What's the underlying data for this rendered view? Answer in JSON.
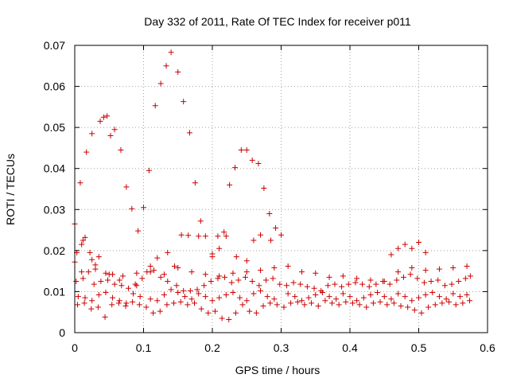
{
  "chart_data": {
    "type": "scatter",
    "title": "Day 332 of 2011, Rate Of TEC Index for receiver p011",
    "xlabel": "GPS time / hours",
    "ylabel": "ROTI / TECUs",
    "xlim": [
      0,
      0.6
    ],
    "ylim": [
      0,
      0.07
    ],
    "xticks": [
      "0",
      "0.1",
      "0.2",
      "0.3",
      "0.4",
      "0.5",
      "0.6"
    ],
    "yticks": [
      "0",
      "0.01",
      "0.02",
      "0.03",
      "0.04",
      "0.05",
      "0.06",
      "0.07"
    ],
    "grid": true,
    "marker": "plus",
    "colors": {
      "marker": "#cc0000"
    },
    "series": [
      {
        "x": [
          0.0,
          0.003,
          0.008,
          0.012,
          0.017,
          0.022,
          0.025,
          0.03,
          0.037,
          0.042,
          0.047,
          0.052,
          0.058,
          0.067,
          0.075,
          0.083,
          0.092,
          0.1,
          0.108,
          0.117,
          0.125,
          0.133,
          0.14,
          0.15,
          0.158,
          0.167,
          0.175,
          0.183,
          0.2,
          0.208,
          0.217,
          0.225,
          0.233,
          0.242,
          0.25,
          0.258,
          0.267,
          0.275,
          0.283,
          0.292,
          0.3,
          0.0,
          0.01,
          0.015,
          0.025,
          0.035,
          0.045,
          0.055,
          0.065,
          0.09,
          0.11,
          0.12,
          0.135,
          0.145,
          0.155,
          0.165,
          0.18,
          0.19,
          0.2,
          0.21,
          0.22,
          0.235,
          0.25,
          0.26,
          0.27,
          0.285,
          0.46,
          0.47,
          0.48,
          0.49,
          0.5,
          0.51,
          0.002,
          0.012,
          0.02,
          0.028,
          0.038,
          0.048,
          0.058,
          0.068,
          0.078,
          0.088,
          0.098,
          0.105,
          0.115,
          0.125,
          0.135,
          0.148,
          0.158,
          0.168,
          0.178,
          0.188,
          0.198,
          0.208,
          0.218,
          0.228,
          0.238,
          0.248,
          0.258,
          0.268,
          0.278,
          0.288,
          0.298,
          0.308,
          0.318,
          0.328,
          0.338,
          0.348,
          0.358,
          0.368,
          0.378,
          0.388,
          0.398,
          0.408,
          0.418,
          0.428,
          0.438,
          0.448,
          0.458,
          0.468,
          0.478,
          0.488,
          0.498,
          0.508,
          0.518,
          0.528,
          0.538,
          0.548,
          0.558,
          0.568,
          0.575,
          0.005,
          0.015,
          0.025,
          0.035,
          0.045,
          0.055,
          0.065,
          0.075,
          0.085,
          0.095,
          0.11,
          0.12,
          0.13,
          0.14,
          0.15,
          0.16,
          0.17,
          0.18,
          0.19,
          0.2,
          0.21,
          0.22,
          0.23,
          0.24,
          0.25,
          0.26,
          0.27,
          0.28,
          0.29,
          0.31,
          0.32,
          0.33,
          0.34,
          0.35,
          0.36,
          0.37,
          0.38,
          0.39,
          0.4,
          0.41,
          0.42,
          0.43,
          0.44,
          0.45,
          0.46,
          0.47,
          0.48,
          0.49,
          0.5,
          0.51,
          0.52,
          0.53,
          0.54,
          0.55,
          0.56,
          0.57,
          0.004,
          0.014,
          0.024,
          0.034,
          0.044,
          0.054,
          0.064,
          0.074,
          0.084,
          0.094,
          0.104,
          0.114,
          0.124,
          0.134,
          0.144,
          0.154,
          0.164,
          0.174,
          0.184,
          0.194,
          0.204,
          0.214,
          0.224,
          0.234,
          0.244,
          0.254,
          0.264,
          0.274,
          0.284,
          0.294,
          0.304,
          0.314,
          0.324,
          0.334,
          0.344,
          0.354,
          0.364,
          0.374,
          0.384,
          0.394,
          0.404,
          0.414,
          0.424,
          0.434,
          0.444,
          0.454,
          0.464,
          0.474,
          0.484,
          0.494,
          0.504,
          0.514,
          0.524,
          0.534,
          0.544,
          0.554,
          0.564,
          0.574,
          0.01,
          0.03,
          0.05,
          0.07,
          0.09,
          0.11,
          0.13,
          0.15,
          0.17,
          0.19,
          0.21,
          0.23,
          0.25,
          0.27,
          0.29,
          0.31,
          0.33,
          0.35,
          0.37,
          0.39,
          0.41,
          0.43,
          0.45,
          0.47,
          0.49,
          0.51,
          0.53,
          0.55,
          0.57
        ],
        "y": [
          0.0265,
          0.0195,
          0.0365,
          0.0225,
          0.044,
          0.0195,
          0.0485,
          0.0165,
          0.0515,
          0.0525,
          0.0528,
          0.048,
          0.0495,
          0.0445,
          0.0355,
          0.0302,
          0.0248,
          0.0305,
          0.0395,
          0.0553,
          0.0607,
          0.065,
          0.0683,
          0.0635,
          0.0563,
          0.0487,
          0.0365,
          0.0272,
          0.0192,
          0.0235,
          0.0245,
          0.036,
          0.0402,
          0.0445,
          0.0445,
          0.042,
          0.0412,
          0.0352,
          0.029,
          0.0255,
          0.0238,
          0.0172,
          0.0215,
          0.0232,
          0.0178,
          0.0185,
          0.0145,
          0.0142,
          0.0128,
          0.0115,
          0.0162,
          0.0182,
          0.0195,
          0.0162,
          0.0238,
          0.0237,
          0.0235,
          0.0235,
          0.0185,
          0.0205,
          0.0235,
          0.0185,
          0.0175,
          0.0225,
          0.0238,
          0.0225,
          0.019,
          0.0205,
          0.0215,
          0.0205,
          0.022,
          0.0195,
          0.0125,
          0.0132,
          0.0148,
          0.0118,
          0.0125,
          0.0128,
          0.0118,
          0.0115,
          0.0108,
          0.0118,
          0.0132,
          0.0148,
          0.0152,
          0.0135,
          0.0125,
          0.0115,
          0.0102,
          0.0102,
          0.0105,
          0.0115,
          0.0125,
          0.0132,
          0.0135,
          0.0122,
          0.0128,
          0.0135,
          0.0125,
          0.0115,
          0.0128,
          0.0132,
          0.0118,
          0.0115,
          0.0122,
          0.0118,
          0.0112,
          0.0108,
          0.0102,
          0.0115,
          0.0118,
          0.0112,
          0.0118,
          0.0122,
          0.0118,
          0.0112,
          0.0118,
          0.0125,
          0.0118,
          0.0128,
          0.0135,
          0.0142,
          0.0132,
          0.0122,
          0.0125,
          0.0128,
          0.0115,
          0.0118,
          0.0125,
          0.0132,
          0.0138,
          0.0088,
          0.0085,
          0.0078,
          0.0092,
          0.0098,
          0.0085,
          0.0078,
          0.0072,
          0.0095,
          0.0088,
          0.0082,
          0.0078,
          0.0092,
          0.0105,
          0.0098,
          0.0088,
          0.0082,
          0.0095,
          0.0088,
          0.0078,
          0.0085,
          0.0092,
          0.0098,
          0.0085,
          0.0078,
          0.0095,
          0.0102,
          0.0088,
          0.0082,
          0.0095,
          0.0088,
          0.0078,
          0.0085,
          0.0092,
          0.0098,
          0.0088,
          0.0082,
          0.0095,
          0.0088,
          0.0078,
          0.0085,
          0.0092,
          0.0098,
          0.0088,
          0.0082,
          0.0095,
          0.0088,
          0.0078,
          0.0085,
          0.0092,
          0.0098,
          0.0088,
          0.0082,
          0.0095,
          0.0088,
          0.0092,
          0.0068,
          0.0072,
          0.0058,
          0.0062,
          0.0038,
          0.0068,
          0.0072,
          0.0065,
          0.0075,
          0.0068,
          0.0062,
          0.0048,
          0.0052,
          0.0068,
          0.0072,
          0.0075,
          0.0068,
          0.0072,
          0.0058,
          0.0048,
          0.0052,
          0.0035,
          0.0032,
          0.0048,
          0.0068,
          0.0052,
          0.0048,
          0.0065,
          0.0072,
          0.0068,
          0.0062,
          0.0072,
          0.0075,
          0.0068,
          0.0072,
          0.0065,
          0.0078,
          0.0072,
          0.0068,
          0.0075,
          0.0072,
          0.0068,
          0.0062,
          0.0072,
          0.0075,
          0.0068,
          0.0072,
          0.0065,
          0.0062,
          0.0055,
          0.0048,
          0.0062,
          0.0068,
          0.0072,
          0.0075,
          0.0068,
          0.0072,
          0.0078,
          0.0148,
          0.0155,
          0.0142,
          0.0138,
          0.0145,
          0.0148,
          0.0142,
          0.0158,
          0.0148,
          0.0142,
          0.0138,
          0.0145,
          0.0148,
          0.0152,
          0.0158,
          0.0162,
          0.0148,
          0.0145,
          0.0135,
          0.0138,
          0.0132,
          0.0128,
          0.0125,
          0.0148,
          0.0158,
          0.0152,
          0.0155,
          0.0158,
          0.0162
        ]
      }
    ]
  }
}
